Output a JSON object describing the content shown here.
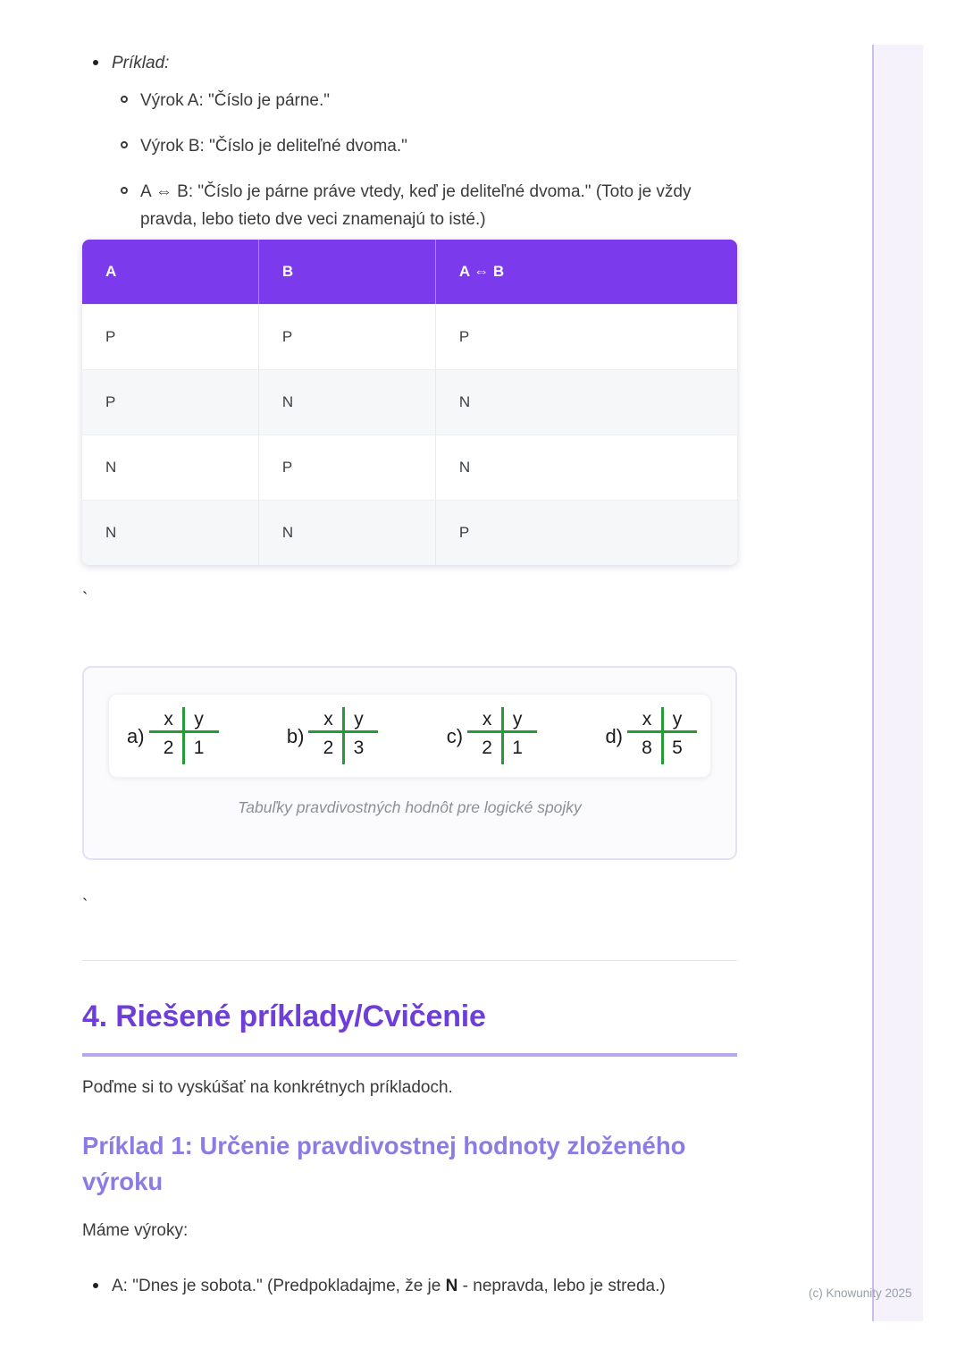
{
  "page": {
    "watermark": "(c) Knowunity 2025"
  },
  "colors": {
    "table_header_bg": "#7c3aed",
    "heading_purple": "#6d3fd8",
    "subheading_purple": "#8b7ce4",
    "heading_underline": "#b7a8ea",
    "figure_line_green": "#259b38",
    "side_panel_bg": "#f5f2fc",
    "side_panel_border": "#cbbdf0"
  },
  "example_list": {
    "title": "Príklad:",
    "items": [
      "Výrok A: \"Číslo je párne.\"",
      "Výrok B: \"Číslo je deliteľné dvoma.\"",
      "A ⇔ B: \"Číslo je párne práve vtedy, keď je deliteľné dvoma.\" (Toto je vždy pravda, lebo tieto dve veci znamenajú to isté.)"
    ]
  },
  "truth_table": {
    "headers": [
      "A",
      "B",
      "A ⇔ B"
    ],
    "rows": [
      [
        "P",
        "P",
        "P"
      ],
      [
        "P",
        "N",
        "N"
      ],
      [
        "N",
        "P",
        "N"
      ],
      [
        "N",
        "N",
        "P"
      ]
    ]
  },
  "stray": {
    "backtick1": "`",
    "backtick2": "`"
  },
  "figure": {
    "tables": [
      {
        "label": "a)",
        "headers": [
          "x",
          "y"
        ],
        "values": [
          "2",
          "1"
        ]
      },
      {
        "label": "b)",
        "headers": [
          "x",
          "y"
        ],
        "values": [
          "2",
          "3"
        ]
      },
      {
        "label": "c)",
        "headers": [
          "x",
          "y"
        ],
        "values": [
          "2",
          "1"
        ]
      },
      {
        "label": "d)",
        "headers": [
          "x",
          "y"
        ],
        "values": [
          "8",
          "5"
        ]
      }
    ],
    "caption": "Tabuľky pravdivostných hodnôt pre logické spojky"
  },
  "section": {
    "heading": "4. Riešené príklady/Cvičenie",
    "intro": "Poďme si to vyskúšať na konkrétnych príkladoch.",
    "subheading": "Príklad 1: Určenie pravdivostnej hodnoty zloženého výroku",
    "lead": "Máme výroky:",
    "bullet": {
      "prefix": "A: \"Dnes je sobota.\" (Predpokladajme, že je ",
      "bold": "N",
      "suffix": " - nepravda, lebo je streda.)"
    }
  }
}
